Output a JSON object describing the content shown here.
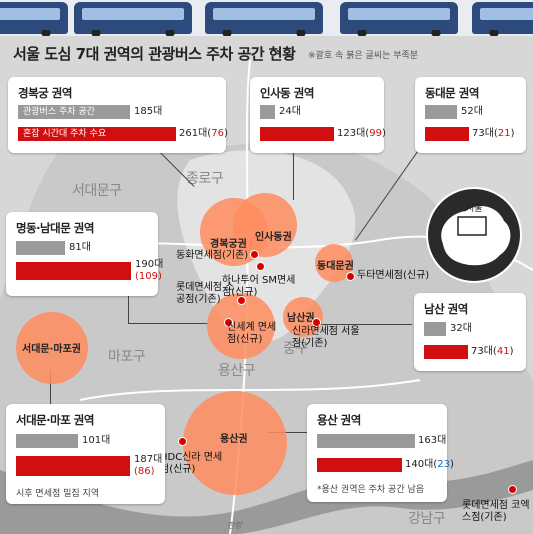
{
  "title": "서울 도심 7대 권역의 관광버스 주차 공간 현황",
  "note": "※괄호 속 붉은 글씨는 부족분",
  "legend": {
    "gray": "관광버스 주차 공간",
    "red": "혼잡 시간대 주차 수요"
  },
  "regions": [
    "서대문구",
    "종로구",
    "마포구",
    "용산구",
    "중구",
    "강남구"
  ],
  "circles": [
    "경복궁권",
    "인사동권",
    "동대문권",
    "남산권",
    "서대문·마포권",
    "용산권"
  ],
  "stores": [
    "동화면세점(기존)",
    "하나투어 SM면세점(신규)",
    "롯데면세점 소공점(기존)",
    "신세계 면세점(신규)",
    "신라면세점 서울점(기존)",
    "두타면세점(신규)",
    "HDC신라 면세점(신규)",
    "롯데면세점 코엑스점(기존)"
  ],
  "boxes": {
    "gyeongbok": {
      "title": "경복궁 권역",
      "parking": "185대",
      "demand": "261대(",
      "shortage": "76",
      "close": ")"
    },
    "insadong": {
      "title": "인사동 권역",
      "parking": "24대",
      "demand": "123대(",
      "shortage": "99",
      "close": ")"
    },
    "dongdaemun": {
      "title": "동대문 권역",
      "parking": "52대",
      "demand": "73대(",
      "shortage": "21",
      "close": ")"
    },
    "myeongdong": {
      "title": "명동·남대문 권역",
      "parking": "81대",
      "demand": "190대",
      "shortage": "(109)"
    },
    "namsan": {
      "title": "남산 권역",
      "parking": "32대",
      "demand": "73대(",
      "shortage": "41",
      "close": ")"
    },
    "seodaemun": {
      "title": "서대문·마포 권역",
      "parking": "101대",
      "demand": "187대",
      "shortage": "(86)",
      "foot": "시후 면세점 밀집 지역"
    },
    "yongsan": {
      "title": "용산 권역",
      "parking": "163대",
      "demand": "140대(",
      "surplus": "23",
      "close": ")",
      "foot": "*용산 권역은 주차 공간 남음"
    }
  },
  "values": {
    "gyeongbok": {
      "parking": 185,
      "demand": 261
    },
    "insadong": {
      "parking": 24,
      "demand": 123
    },
    "dongdaemun": {
      "parking": 52,
      "demand": 73
    },
    "myeongdong": {
      "parking": 81,
      "demand": 190
    },
    "namsan": {
      "parking": 32,
      "demand": 73
    },
    "seodaemun": {
      "parking": 101,
      "demand": 187
    },
    "yongsan": {
      "parking": 163,
      "demand": 140
    }
  },
  "inset": "서울",
  "watermark": "한랑",
  "colors": {
    "demand": "#d10f10",
    "parking": "#9a9a9a",
    "circle": "#ff8c5f",
    "bus": "#2d4a7c"
  }
}
